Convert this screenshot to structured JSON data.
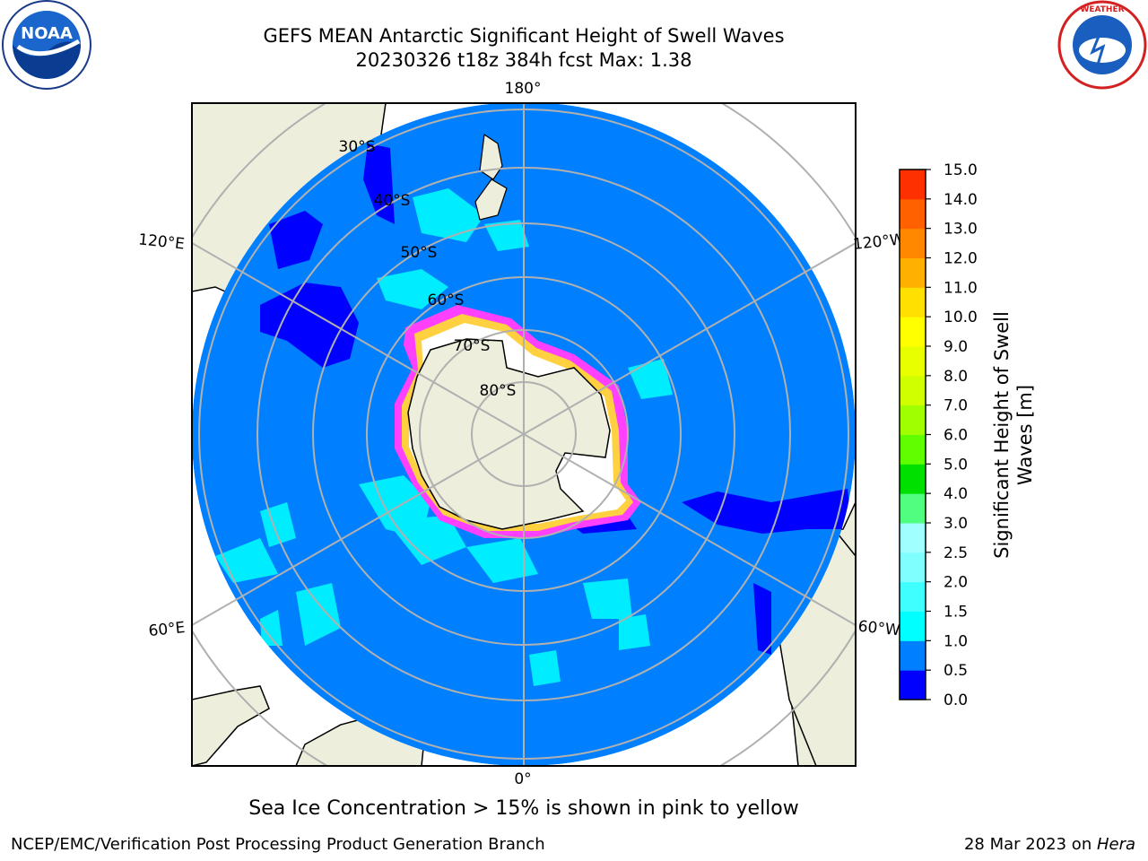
{
  "header": {
    "title_line1": "GEFS MEAN Antarctic Significant Height of Swell Waves",
    "title_line2": "20230326 t18z 384h fcst   Max: 1.38"
  },
  "logos": {
    "left": "noaa-logo",
    "right": "nws-logo"
  },
  "map": {
    "projection": "south-polar-stereographic",
    "longitude_labels": [
      "180°",
      "120°E",
      "120°W",
      "60°E",
      "60°W",
      "0°"
    ],
    "latitude_labels": [
      "30°S",
      "40°S",
      "50°S",
      "60°S",
      "70°S",
      "80°S"
    ],
    "ocean_color": "#0080ff",
    "land_color": "#eeeedc",
    "sea_ice_colors": [
      "#ff40ff",
      "#ffb0ff",
      "#ffd040"
    ]
  },
  "colorbar": {
    "label": "Significant Height of Swell Waves [m]",
    "label_line1": "Significant Height of Swell",
    "label_line2": "Waves [m]",
    "ticks": [
      "0.0",
      "0.5",
      "1.0",
      "1.5",
      "2.0",
      "2.5",
      "3.0",
      "4.0",
      "5.0",
      "6.0",
      "7.0",
      "8.0",
      "9.0",
      "10.0",
      "11.0",
      "12.0",
      "13.0",
      "14.0",
      "15.0"
    ],
    "colors": [
      "#0000ff",
      "#0080ff",
      "#00ffff",
      "#40ffff",
      "#80ffff",
      "#a0ffff",
      "#50ff80",
      "#00e000",
      "#60ff00",
      "#a0ff00",
      "#d0ff00",
      "#e8ff00",
      "#ffff00",
      "#ffe000",
      "#ffb000",
      "#ff8800",
      "#ff6000",
      "#ff3000",
      "#ff0000"
    ]
  },
  "caption": "Sea Ice Concentration > 15% is shown in pink to yellow",
  "footer": {
    "left": "NCEP/EMC/Verification Post Processing Product Generation Branch",
    "right_prefix": "28 Mar 2023 on ",
    "right_host": "Hera"
  }
}
